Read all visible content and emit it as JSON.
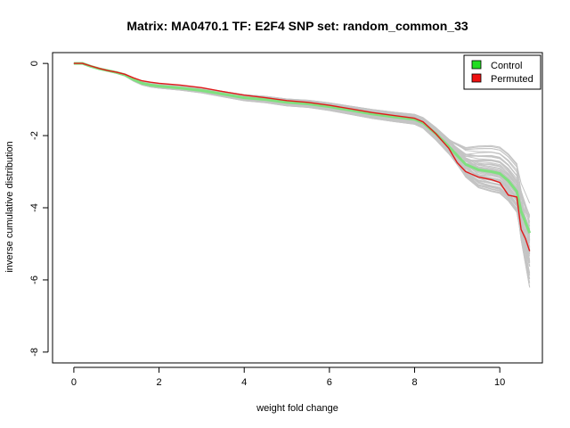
{
  "chart_data": {
    "type": "line",
    "title": "Matrix: MA0470.1 TF: E2F4 SNP set: random_common_33",
    "xlabel": "weight fold change",
    "ylabel": "inverse cumulative distribution",
    "xlim": [
      -0.5,
      11.0
    ],
    "ylim": [
      -8.3,
      0.3
    ],
    "xticks": [
      0,
      2,
      4,
      6,
      8,
      10
    ],
    "yticks": [
      0,
      -2,
      -4,
      -6,
      -8
    ],
    "grid": false,
    "legend_position": "top-right",
    "legend": [
      {
        "label": "Control",
        "color": "#22dd22"
      },
      {
        "label": "Permuted",
        "color": "#ee1111"
      }
    ],
    "colors": {
      "background_curves": "#c4c4c4",
      "control": "#7fe07f",
      "permuted": "#e01a1a",
      "axis": "#000000"
    },
    "series": [
      {
        "name": "Control",
        "x": [
          0,
          0.2,
          0.4,
          0.6,
          0.8,
          1.0,
          1.2,
          1.4,
          1.6,
          1.8,
          2.0,
          2.5,
          3.0,
          3.5,
          4.0,
          4.5,
          5.0,
          5.5,
          6.0,
          6.5,
          7.0,
          7.5,
          8.0,
          8.2,
          8.5,
          8.8,
          9.0,
          9.2,
          9.5,
          9.8,
          10.0,
          10.2,
          10.4,
          10.5,
          10.6,
          10.7
        ],
        "y": [
          0,
          0,
          -0.08,
          -0.15,
          -0.2,
          -0.25,
          -0.32,
          -0.45,
          -0.55,
          -0.6,
          -0.63,
          -0.68,
          -0.75,
          -0.85,
          -0.95,
          -1.0,
          -1.08,
          -1.12,
          -1.2,
          -1.3,
          -1.4,
          -1.48,
          -1.55,
          -1.65,
          -1.95,
          -2.3,
          -2.55,
          -2.8,
          -2.95,
          -3.0,
          -3.05,
          -3.25,
          -3.55,
          -4.1,
          -4.4,
          -4.7
        ]
      },
      {
        "name": "Permuted",
        "x": [
          0,
          0.2,
          0.4,
          0.6,
          0.8,
          1.0,
          1.2,
          1.4,
          1.6,
          1.8,
          2.0,
          2.5,
          3.0,
          3.5,
          4.0,
          4.5,
          5.0,
          5.5,
          6.0,
          6.5,
          7.0,
          7.5,
          8.0,
          8.2,
          8.5,
          8.8,
          9.0,
          9.2,
          9.5,
          9.8,
          10.0,
          10.2,
          10.4,
          10.5,
          10.6,
          10.7
        ],
        "y": [
          0,
          0,
          -0.07,
          -0.14,
          -0.2,
          -0.24,
          -0.3,
          -0.4,
          -0.48,
          -0.52,
          -0.55,
          -0.6,
          -0.67,
          -0.78,
          -0.88,
          -0.95,
          -1.03,
          -1.08,
          -1.16,
          -1.26,
          -1.36,
          -1.44,
          -1.52,
          -1.62,
          -1.95,
          -2.35,
          -2.75,
          -3.0,
          -3.15,
          -3.22,
          -3.3,
          -3.65,
          -3.7,
          -4.6,
          -4.85,
          -5.2
        ]
      }
    ]
  }
}
